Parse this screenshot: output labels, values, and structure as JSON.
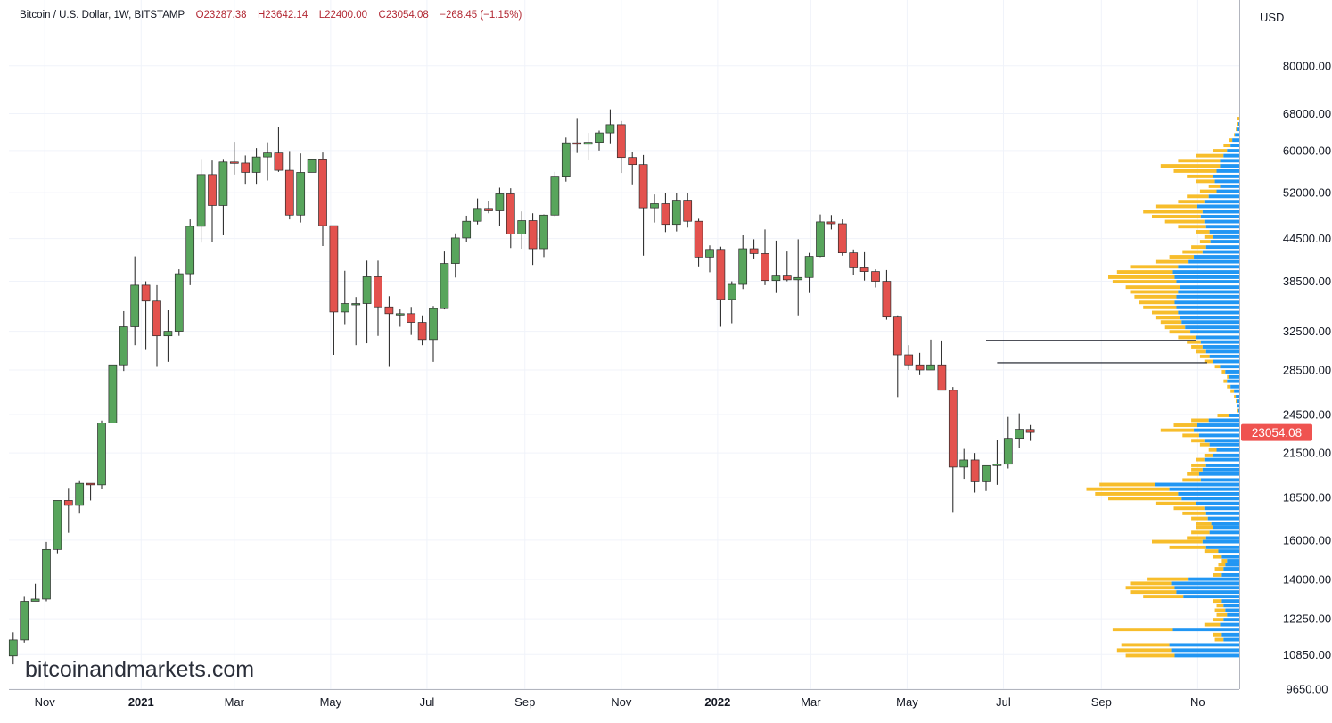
{
  "header": {
    "symbol": "Bitcoin / U.S. Dollar, 1W, BITSTAMP",
    "open": "O23287.38",
    "high": "H23642.14",
    "low": "L22400.00",
    "close": "C23054.08",
    "change": "−268.45 (−1.15%)"
  },
  "currency_label": "USD",
  "last_price_label": "23054.08",
  "watermark": "bitcoinandmarkets.com",
  "colors": {
    "up": "#58a55c",
    "down": "#e3524e",
    "wick": "#1e1e1e",
    "volume_profile_up": "#2196f3",
    "volume_profile_down": "#f7bd2b",
    "last_price_bg": "#ef5350",
    "grid": "#f0f3fa"
  },
  "chart_data": {
    "type": "candlestick",
    "timeframe": "1W",
    "exchange": "BITSTAMP",
    "y_scale": "log",
    "ylim": [
      9650,
      100000
    ],
    "y_ticks": [
      "80000.00",
      "68000.00",
      "60000.00",
      "52000.00",
      "44500.00",
      "38500.00",
      "32500.00",
      "28500.00",
      "24500.00",
      "21500.00",
      "18500.00",
      "16000.00",
      "14000.00",
      "12250.00",
      "10850.00",
      "9650.00"
    ],
    "x_ticks": [
      "Nov",
      "2021",
      "Mar",
      "May",
      "Jul",
      "Sep",
      "Nov",
      "2022",
      "Mar",
      "May",
      "Jul",
      "Sep",
      "No"
    ],
    "first_week": "2020-10-12",
    "candles": [
      [
        10800,
        11700,
        10500,
        11400
      ],
      [
        11400,
        13200,
        11300,
        13000
      ],
      [
        13000,
        13800,
        13000,
        13100
      ],
      [
        13100,
        15900,
        13000,
        15500
      ],
      [
        15500,
        17800,
        15300,
        18300
      ],
      [
        18300,
        19100,
        16400,
        18000
      ],
      [
        18000,
        19600,
        17500,
        19400
      ],
      [
        19400,
        19400,
        18300,
        19300
      ],
      [
        19300,
        24000,
        19000,
        23800
      ],
      [
        23800,
        28500,
        23800,
        29000
      ],
      [
        29000,
        34800,
        28400,
        33000
      ],
      [
        33000,
        41900,
        31000,
        38000
      ],
      [
        38000,
        38500,
        30500,
        36000
      ],
      [
        36000,
        38000,
        28800,
        32000
      ],
      [
        32000,
        34900,
        29300,
        32500
      ],
      [
        32500,
        40100,
        32000,
        39500
      ],
      [
        39500,
        47500,
        38000,
        46400
      ],
      [
        46400,
        58300,
        43900,
        55300
      ],
      [
        55300,
        58000,
        44000,
        49800
      ],
      [
        49800,
        58300,
        45000,
        57700
      ],
      [
        57700,
        61800,
        55300,
        57500
      ],
      [
        57500,
        59000,
        53600,
        55700
      ],
      [
        55700,
        60500,
        53600,
        58700
      ],
      [
        58700,
        61700,
        54200,
        59500
      ],
      [
        59500,
        65000,
        55800,
        56100
      ],
      [
        56100,
        59900,
        47500,
        48200
      ],
      [
        48200,
        59400,
        47000,
        55700
      ],
      [
        55700,
        58200,
        56000,
        58300
      ],
      [
        58300,
        59600,
        43400,
        46500
      ],
      [
        46500,
        46500,
        30000,
        34700
      ],
      [
        34700,
        39900,
        33300,
        35700
      ],
      [
        35700,
        36500,
        31000,
        35700
      ],
      [
        35700,
        41300,
        31200,
        39100
      ],
      [
        39100,
        41300,
        32000,
        35300
      ],
      [
        35300,
        36600,
        28800,
        34500
      ],
      [
        34500,
        35000,
        33000,
        34500
      ],
      [
        34500,
        35300,
        32100,
        33500
      ],
      [
        33500,
        34300,
        31000,
        31600
      ],
      [
        31600,
        35400,
        29300,
        35100
      ],
      [
        35100,
        42600,
        35000,
        40900
      ],
      [
        40900,
        45300,
        39000,
        44600
      ],
      [
        44600,
        48100,
        44000,
        47200
      ],
      [
        47200,
        51000,
        46700,
        49300
      ],
      [
        49300,
        50500,
        48500,
        48900
      ],
      [
        48900,
        52900,
        46500,
        51800
      ],
      [
        51800,
        52800,
        43100,
        45200
      ],
      [
        45200,
        48800,
        43000,
        47300
      ],
      [
        47300,
        48500,
        40700,
        43000
      ],
      [
        43000,
        48300,
        41800,
        48200
      ],
      [
        48200,
        55800,
        48000,
        55000
      ],
      [
        55000,
        62700,
        54000,
        61600
      ],
      [
        61600,
        67000,
        59500,
        61300
      ],
      [
        61300,
        63700,
        58100,
        61700
      ],
      [
        61700,
        64200,
        60000,
        63700
      ],
      [
        63700,
        69000,
        61500,
        65500
      ],
      [
        65500,
        66300,
        55600,
        58600
      ],
      [
        58600,
        59800,
        53500,
        57200
      ],
      [
        57200,
        59100,
        42000,
        49400
      ],
      [
        49400,
        51700,
        47000,
        50100
      ],
      [
        50100,
        52000,
        45500,
        46700
      ],
      [
        46700,
        51900,
        45600,
        50700
      ],
      [
        50700,
        51900,
        46200,
        47200
      ],
      [
        47200,
        47600,
        40500,
        41800
      ],
      [
        41800,
        43500,
        39700,
        42900
      ],
      [
        42900,
        43300,
        33000,
        36200
      ],
      [
        36200,
        38500,
        33400,
        38100
      ],
      [
        38100,
        45000,
        37500,
        43000
      ],
      [
        43000,
        44400,
        41600,
        42300
      ],
      [
        42300,
        45900,
        38000,
        38600
      ],
      [
        38600,
        44200,
        37000,
        39200
      ],
      [
        39200,
        42600,
        38500,
        38700
      ],
      [
        38700,
        44400,
        34300,
        39000
      ],
      [
        39000,
        42400,
        37000,
        41900
      ],
      [
        41900,
        48300,
        41800,
        47100
      ],
      [
        47100,
        48200,
        45900,
        46800
      ],
      [
        46800,
        47500,
        42000,
        42400
      ],
      [
        42400,
        42900,
        39300,
        40300
      ],
      [
        40300,
        42500,
        38600,
        39800
      ],
      [
        39800,
        40100,
        37700,
        38500
      ],
      [
        38500,
        40000,
        33800,
        34100
      ],
      [
        34100,
        34300,
        26000,
        30000
      ],
      [
        30000,
        31000,
        28500,
        29000
      ],
      [
        29000,
        30200,
        28000,
        28500
      ],
      [
        28500,
        31600,
        28600,
        29000
      ],
      [
        29000,
        31500,
        26800,
        26600
      ],
      [
        26600,
        26900,
        17600,
        20500
      ],
      [
        20500,
        21800,
        19700,
        21000
      ],
      [
        21000,
        21500,
        18800,
        19500
      ],
      [
        19500,
        20400,
        18900,
        20600
      ],
      [
        20600,
        22500,
        19300,
        20700
      ],
      [
        20700,
        24300,
        20400,
        22600
      ],
      [
        22600,
        24600,
        21900,
        23300
      ],
      [
        23287.38,
        23642.14,
        22400,
        23054.08
      ]
    ],
    "volume_profile": [
      [
        66800,
        0,
        2
      ],
      [
        65600,
        1,
        3
      ],
      [
        64400,
        2,
        4
      ],
      [
        63200,
        5,
        6
      ],
      [
        62100,
        8,
        12
      ],
      [
        61000,
        10,
        18
      ],
      [
        59900,
        14,
        30
      ],
      [
        58900,
        18,
        50
      ],
      [
        57900,
        22,
        70
      ],
      [
        56900,
        22,
        90
      ],
      [
        55900,
        26,
        75
      ],
      [
        54900,
        30,
        60
      ],
      [
        54000,
        28,
        50
      ],
      [
        53100,
        22,
        35
      ],
      [
        52200,
        26,
        45
      ],
      [
        51300,
        35,
        60
      ],
      [
        50400,
        40,
        70
      ],
      [
        49600,
        48,
        95
      ],
      [
        48700,
        42,
        110
      ],
      [
        47900,
        44,
        100
      ],
      [
        47100,
        40,
        85
      ],
      [
        46300,
        38,
        70
      ],
      [
        45500,
        34,
        50
      ],
      [
        44700,
        30,
        40
      ],
      [
        44000,
        33,
        45
      ],
      [
        43200,
        38,
        55
      ],
      [
        42500,
        42,
        65
      ],
      [
        41800,
        52,
        80
      ],
      [
        41100,
        58,
        95
      ],
      [
        40400,
        70,
        125
      ],
      [
        39700,
        76,
        140
      ],
      [
        39000,
        74,
        150
      ],
      [
        38400,
        72,
        145
      ],
      [
        37700,
        68,
        130
      ],
      [
        37100,
        70,
        125
      ],
      [
        36500,
        72,
        120
      ],
      [
        35800,
        74,
        115
      ],
      [
        35200,
        72,
        110
      ],
      [
        34600,
        70,
        100
      ],
      [
        34000,
        68,
        95
      ],
      [
        33500,
        66,
        90
      ],
      [
        32900,
        62,
        85
      ],
      [
        32400,
        56,
        80
      ],
      [
        31800,
        50,
        70
      ],
      [
        31300,
        44,
        60
      ],
      [
        30800,
        42,
        55
      ],
      [
        30300,
        38,
        50
      ],
      [
        29800,
        34,
        45
      ],
      [
        29300,
        30,
        40
      ],
      [
        28800,
        22,
        28
      ],
      [
        28300,
        16,
        20
      ],
      [
        27800,
        12,
        14
      ],
      [
        27400,
        14,
        18
      ],
      [
        26900,
        10,
        14
      ],
      [
        26500,
        6,
        10
      ],
      [
        26000,
        4,
        6
      ],
      [
        25600,
        3,
        4
      ],
      [
        25200,
        2,
        3
      ],
      [
        24800,
        1,
        2
      ],
      [
        24400,
        12,
        25
      ],
      [
        24000,
        35,
        55
      ],
      [
        23600,
        48,
        75
      ],
      [
        23200,
        52,
        90
      ],
      [
        22800,
        46,
        65
      ],
      [
        22400,
        40,
        55
      ],
      [
        22100,
        34,
        45
      ],
      [
        21700,
        26,
        35
      ],
      [
        21300,
        30,
        40
      ],
      [
        21000,
        40,
        50
      ],
      [
        20600,
        38,
        55
      ],
      [
        20300,
        42,
        55
      ],
      [
        20000,
        46,
        60
      ],
      [
        19600,
        44,
        65
      ],
      [
        19300,
        96,
        160
      ],
      [
        19000,
        80,
        175
      ],
      [
        18700,
        70,
        165
      ],
      [
        18400,
        66,
        150
      ],
      [
        18100,
        50,
        95
      ],
      [
        17800,
        40,
        75
      ],
      [
        17500,
        38,
        65
      ],
      [
        17200,
        36,
        55
      ],
      [
        16900,
        32,
        50
      ],
      [
        16700,
        30,
        50
      ],
      [
        16400,
        34,
        55
      ],
      [
        16100,
        38,
        60
      ],
      [
        15900,
        42,
        100
      ],
      [
        15600,
        38,
        80
      ],
      [
        15400,
        24,
        40
      ],
      [
        15100,
        20,
        30
      ],
      [
        14900,
        14,
        20
      ],
      [
        14700,
        16,
        24
      ],
      [
        14500,
        18,
        28
      ],
      [
        14200,
        20,
        30
      ],
      [
        14000,
        58,
        105
      ],
      [
        13800,
        78,
        125
      ],
      [
        13600,
        74,
        130
      ],
      [
        13400,
        72,
        125
      ],
      [
        13200,
        64,
        110
      ],
      [
        13000,
        20,
        30
      ],
      [
        12800,
        18,
        26
      ],
      [
        12600,
        16,
        28
      ],
      [
        12400,
        14,
        26
      ],
      [
        12200,
        18,
        30
      ],
      [
        12000,
        22,
        40
      ],
      [
        11800,
        76,
        145
      ],
      [
        11600,
        20,
        30
      ],
      [
        11400,
        18,
        28
      ],
      [
        11200,
        80,
        135
      ],
      [
        11000,
        78,
        140
      ],
      [
        10800,
        74,
        130
      ]
    ],
    "annotations": [
      {
        "type": "hline",
        "price": 31500,
        "from": "2022-06-20",
        "to": "2022-10-31"
      },
      {
        "type": "hline",
        "price": 29200,
        "from": "2022-06-27",
        "to": "2022-11-07"
      }
    ]
  }
}
